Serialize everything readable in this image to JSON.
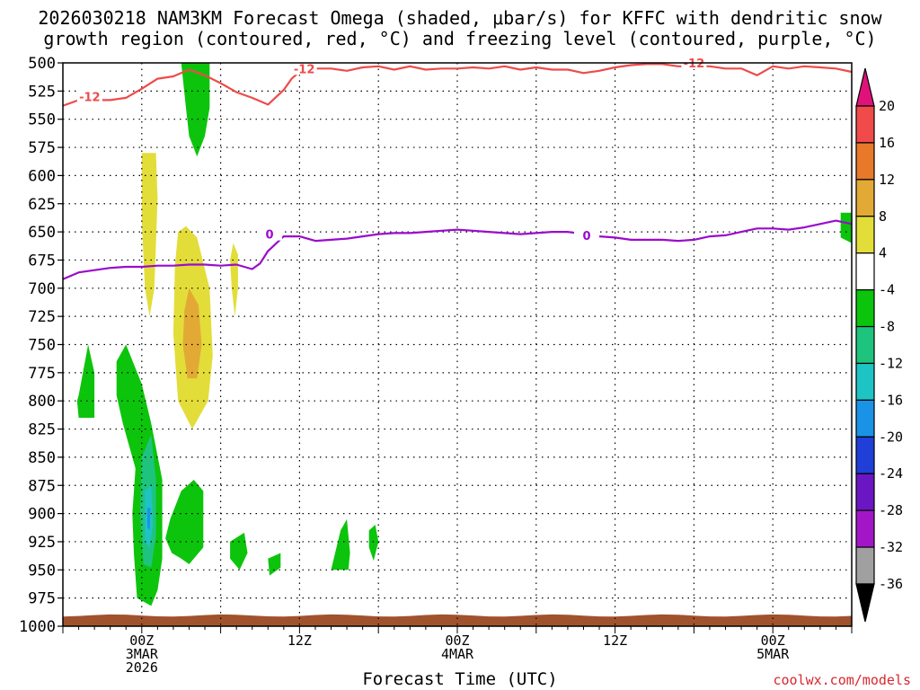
{
  "chart_data": {
    "type": "heatmap",
    "title_line1": "2026030218 NAM3KM Forecast Omega (shaded, μbar/s) for KFFC with dendritic snow",
    "title_line2": "growth region (contoured, red, °C) and freezing level (contoured, purple, °C)",
    "xlabel": "Forecast Time (UTC)",
    "ylabel": "",
    "y_ticks": [
      500,
      525,
      550,
      575,
      600,
      625,
      650,
      675,
      700,
      725,
      750,
      775,
      800,
      825,
      850,
      875,
      900,
      925,
      950,
      975,
      1000
    ],
    "ylim": [
      1000,
      500
    ],
    "xlim_hours": [
      -5,
      45
    ],
    "grid": true,
    "x_ticks": [
      {
        "hour": 0,
        "lines": [
          "00Z",
          "3MAR",
          "2026"
        ]
      },
      {
        "hour": 10,
        "lines": [
          "12Z"
        ]
      },
      {
        "hour": 20,
        "lines": [
          "00Z",
          "4MAR"
        ]
      },
      {
        "hour": 30,
        "lines": [
          "12Z"
        ]
      },
      {
        "hour": 40,
        "lines": [
          "00Z",
          "5MAR"
        ]
      }
    ],
    "colorbar": {
      "labels": [
        20,
        16,
        12,
        8,
        4,
        -4,
        -8,
        -12,
        -16,
        -20,
        -24,
        -28,
        -32,
        -36
      ],
      "colors": [
        "#e0127a",
        "#f04a4a",
        "#e8782a",
        "#e2aa35",
        "#e3dd3a",
        "#ffffff",
        "#0cc40c",
        "#1ec47e",
        "#1ec4c4",
        "#1a92e6",
        "#1f3fd8",
        "#6a16c2",
        "#a316c8",
        "#a0a0a0",
        "#000000"
      ]
    },
    "series": [
      {
        "name": "-12",
        "color": "#ef4a4a",
        "x": [
          -5,
          -4,
          -3,
          -2,
          -1,
          0,
          1,
          2,
          3,
          4,
          5,
          6,
          7,
          8,
          9,
          9.5,
          10,
          11,
          12,
          13,
          14,
          15,
          16,
          17,
          18,
          19,
          20,
          21,
          22,
          23,
          24,
          25,
          26,
          27,
          28,
          29,
          30,
          31,
          32,
          33,
          34,
          35,
          36,
          37,
          38,
          39,
          40,
          41,
          42,
          43,
          44,
          45
        ],
        "y": [
          538,
          533,
          533,
          533,
          531,
          523,
          514,
          512,
          506,
          511,
          518,
          526,
          531,
          537,
          524,
          514,
          508,
          505,
          505,
          507,
          504,
          503,
          506,
          503,
          506,
          505,
          505,
          504,
          505,
          503,
          506,
          504,
          506,
          506,
          509,
          507,
          504,
          502,
          501,
          501,
          503,
          503,
          503,
          505,
          505,
          511,
          503,
          505,
          503,
          504,
          505,
          508
        ]
      },
      {
        "name": "0",
        "color": "#9a0ccc",
        "x": [
          -5,
          -4,
          -3,
          -2,
          -1,
          0,
          1,
          2,
          3,
          4,
          5,
          6,
          7,
          7.5,
          8,
          9,
          10,
          11,
          12,
          13,
          14,
          15,
          16,
          17,
          18,
          19,
          20,
          21,
          22,
          23,
          24,
          25,
          26,
          27,
          28,
          29,
          30,
          31,
          32,
          33,
          34,
          35,
          36,
          37,
          38,
          39,
          40,
          41,
          42,
          43,
          44,
          45
        ],
        "y": [
          692,
          686,
          684,
          682,
          681,
          681,
          680,
          680,
          679,
          679,
          680,
          679,
          683,
          678,
          667,
          654,
          654,
          658,
          657,
          656,
          654,
          652,
          651,
          651,
          650,
          649,
          648,
          649,
          650,
          651,
          652,
          651,
          650,
          650,
          652,
          654,
          655,
          657,
          657,
          657,
          658,
          657,
          654,
          653,
          650,
          647,
          647,
          648,
          646,
          643,
          640,
          643
        ]
      }
    ],
    "omega_regions": [
      {
        "color": "#0cc40c",
        "pts": [
          [
            2.5,
            500
          ],
          [
            4.3,
            500
          ],
          [
            4.3,
            540
          ],
          [
            4.0,
            565
          ],
          [
            3.5,
            583
          ],
          [
            3.0,
            565
          ],
          [
            2.8,
            540
          ]
        ]
      },
      {
        "color": "#e3dd3a",
        "pts": [
          [
            0.0,
            580
          ],
          [
            0.9,
            580
          ],
          [
            1.0,
            620
          ],
          [
            0.9,
            660
          ],
          [
            0.8,
            700
          ],
          [
            0.5,
            725
          ],
          [
            0.2,
            700
          ],
          [
            0.0,
            640
          ]
        ]
      },
      {
        "color": "#e3dd3a",
        "pts": [
          [
            2.3,
            650
          ],
          [
            2.8,
            645
          ],
          [
            3.5,
            655
          ],
          [
            4.3,
            700
          ],
          [
            4.5,
            760
          ],
          [
            4.2,
            800
          ],
          [
            3.2,
            825
          ],
          [
            2.3,
            800
          ],
          [
            2.0,
            740
          ],
          [
            2.1,
            680
          ]
        ]
      },
      {
        "color": "#e2aa35",
        "pts": [
          [
            3.0,
            700
          ],
          [
            3.6,
            715
          ],
          [
            3.8,
            750
          ],
          [
            3.5,
            780
          ],
          [
            2.9,
            780
          ],
          [
            2.6,
            750
          ],
          [
            2.7,
            720
          ]
        ]
      },
      {
        "color": "#e3dd3a",
        "pts": [
          [
            5.8,
            660
          ],
          [
            6.1,
            670
          ],
          [
            6.1,
            700
          ],
          [
            5.9,
            725
          ],
          [
            5.7,
            700
          ],
          [
            5.6,
            675
          ]
        ]
      },
      {
        "color": "#0cc40c",
        "pts": [
          [
            -4.0,
            795
          ],
          [
            -3.4,
            750
          ],
          [
            -3.0,
            775
          ],
          [
            -3.0,
            815
          ],
          [
            -4.0,
            815
          ],
          [
            -4.1,
            800
          ]
        ]
      },
      {
        "color": "#0cc40c",
        "pts": [
          [
            -1.6,
            765
          ],
          [
            -1.0,
            750
          ],
          [
            0.0,
            785
          ],
          [
            0.6,
            820
          ],
          [
            1.3,
            870
          ],
          [
            1.3,
            940
          ],
          [
            1.0,
            968
          ],
          [
            0.6,
            982
          ],
          [
            -0.3,
            975
          ],
          [
            -0.5,
            935
          ],
          [
            -0.6,
            900
          ],
          [
            -0.4,
            860
          ],
          [
            -1.2,
            820
          ],
          [
            -1.6,
            795
          ]
        ]
      },
      {
        "color": "#0cc40c",
        "pts": [
          [
            1.5,
            922
          ],
          [
            1.8,
            905
          ],
          [
            2.5,
            880
          ],
          [
            3.3,
            870
          ],
          [
            3.9,
            880
          ],
          [
            3.9,
            930
          ],
          [
            3.0,
            945
          ],
          [
            2.5,
            940
          ],
          [
            1.9,
            935
          ]
        ]
      },
      {
        "color": "#1ec47e",
        "pts": [
          [
            0.0,
            850
          ],
          [
            0.6,
            830
          ],
          [
            0.9,
            870
          ],
          [
            0.9,
            920
          ],
          [
            0.6,
            948
          ],
          [
            0.1,
            945
          ],
          [
            -0.1,
            900
          ]
        ]
      },
      {
        "color": "#1ec4c4",
        "pts": [
          [
            0.2,
            880
          ],
          [
            0.6,
            875
          ],
          [
            0.7,
            910
          ],
          [
            0.5,
            930
          ],
          [
            0.2,
            925
          ]
        ]
      },
      {
        "color": "#1a92e6",
        "pts": [
          [
            0.35,
            895
          ],
          [
            0.55,
            895
          ],
          [
            0.5,
            915
          ],
          [
            0.35,
            912
          ]
        ]
      },
      {
        "color": "#0cc40c",
        "pts": [
          [
            5.6,
            925
          ],
          [
            6.5,
            917
          ],
          [
            6.7,
            935
          ],
          [
            6.2,
            950
          ],
          [
            5.6,
            940
          ]
        ]
      },
      {
        "color": "#0cc40c",
        "pts": [
          [
            8.0,
            940
          ],
          [
            8.8,
            935
          ],
          [
            8.8,
            948
          ],
          [
            8.1,
            955
          ]
        ]
      },
      {
        "color": "#0cc40c",
        "pts": [
          [
            12.0,
            950
          ],
          [
            12.6,
            915
          ],
          [
            13.0,
            905
          ],
          [
            13.2,
            935
          ],
          [
            13.1,
            950
          ]
        ]
      },
      {
        "color": "#0cc40c",
        "pts": [
          [
            14.4,
            915
          ],
          [
            14.8,
            910
          ],
          [
            15.0,
            925
          ],
          [
            14.7,
            942
          ],
          [
            14.4,
            930
          ]
        ]
      },
      {
        "color": "#0cc40c",
        "pts": [
          [
            44.3,
            633
          ],
          [
            45.0,
            633
          ],
          [
            45.0,
            660
          ],
          [
            44.3,
            655
          ]
        ]
      }
    ],
    "contour_labels": [
      {
        "text": "-12",
        "x": -3.3,
        "y": 530,
        "color": "#ef4a4a"
      },
      {
        "text": "-12",
        "x": 10.3,
        "y": 505,
        "color": "#ef4a4a"
      },
      {
        "text": "-12",
        "x": 35.0,
        "y": 500,
        "color": "#ef4a4a"
      },
      {
        "text": "0",
        "x": 8.1,
        "y": 652,
        "color": "#9a0ccc"
      },
      {
        "text": "0",
        "x": 28.2,
        "y": 653,
        "color": "#9a0ccc"
      }
    ],
    "ground_color": "#a0522d"
  },
  "credit": "coolwx.com/models"
}
